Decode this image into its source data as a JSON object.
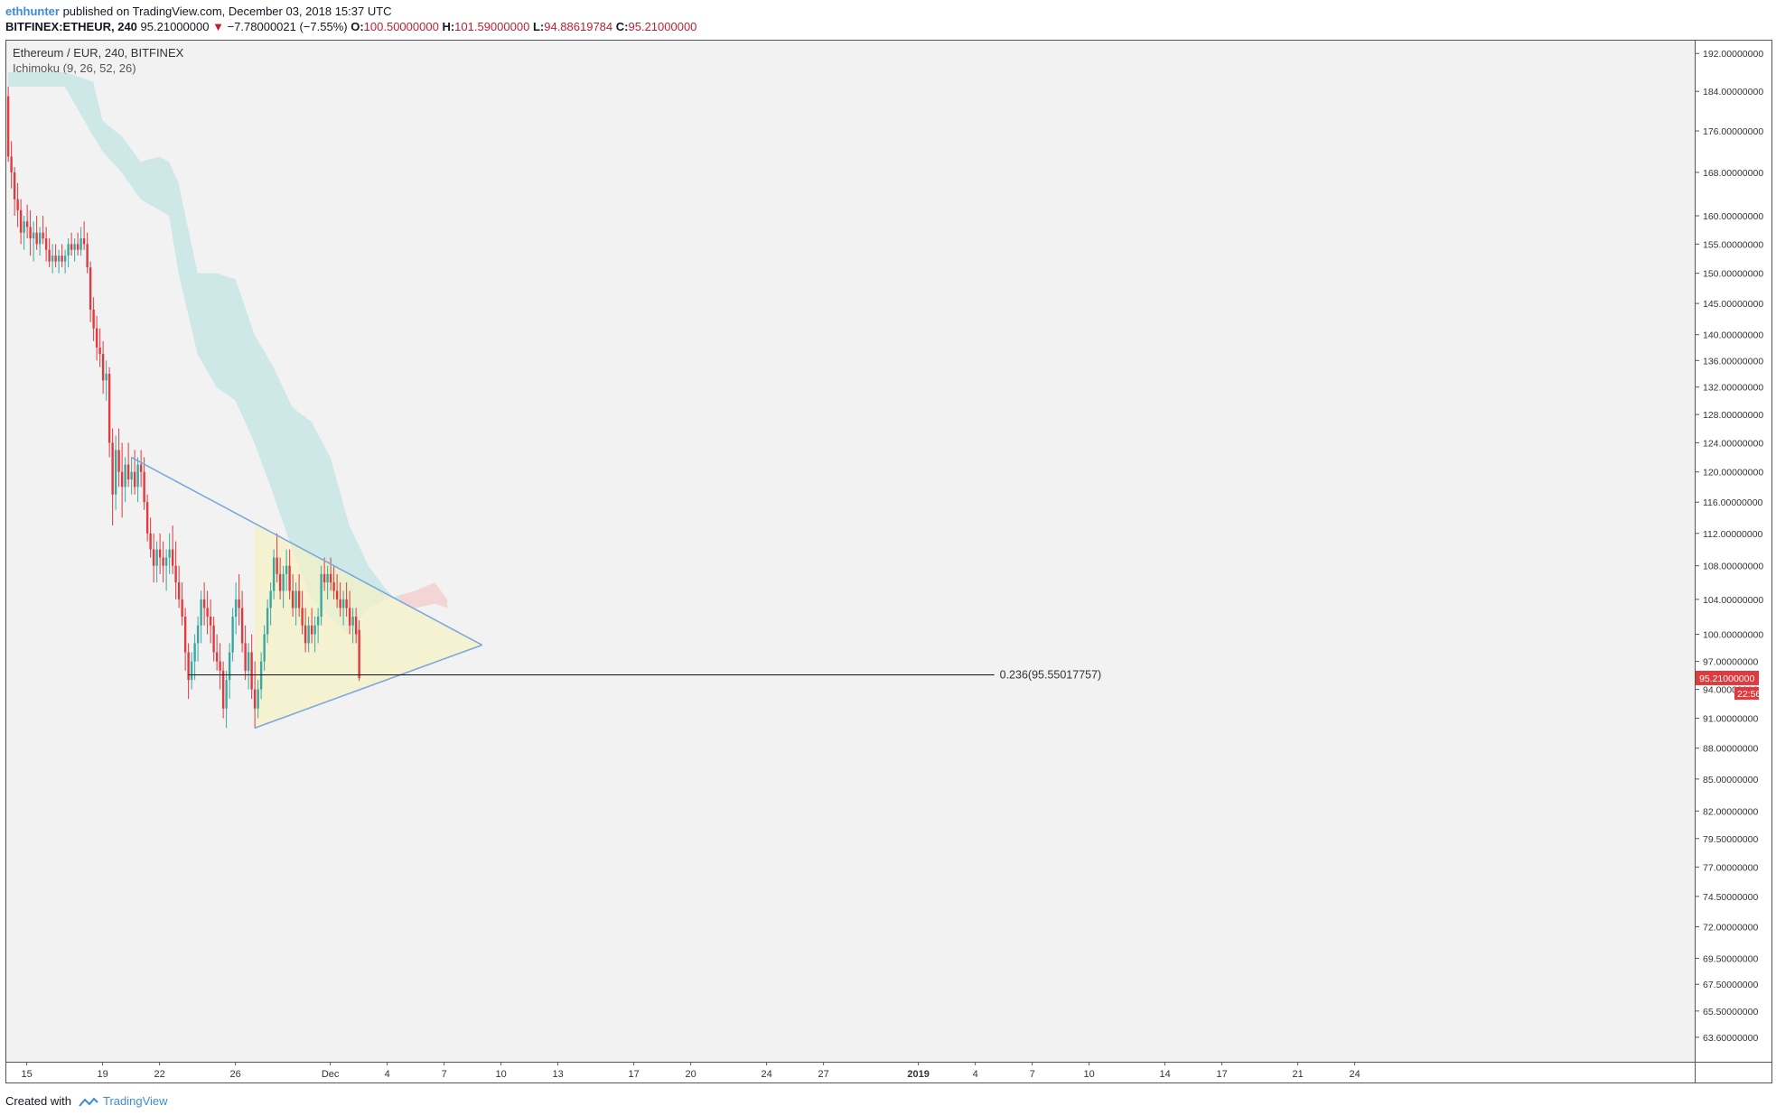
{
  "header": {
    "author": "ethhunter",
    "published_text": "published on TradingView.com, December 03, 2018 15:37 UTC",
    "symbol_line": "BITFINEX:ETHEUR, 240",
    "last_price": "95.21000000",
    "change_arrow": "▼",
    "change": "−7.78000021 (−7.55%)",
    "o_label": "O:",
    "o_value": "100.50000000",
    "h_label": "H:",
    "h_value": "101.59000000",
    "l_label": "L:",
    "l_value": "94.88619784",
    "c_label": "C:",
    "c_value": "95.21000000"
  },
  "legend": {
    "title": "Ethereum / EUR, 240, BITFINEX",
    "indicator": "Ichimoku (9, 26, 52, 26)"
  },
  "footer": {
    "created_with": "Created with",
    "brand": "TradingView"
  },
  "colors": {
    "up": "#3aa89f",
    "down": "#e0393e",
    "cloud_bear": "#f2c4c4",
    "cloud_bull": "#b9e2de",
    "triangle_fill": "#f7f2c4",
    "triangle_line": "#7aa7de",
    "background": "#f2f2f2",
    "price_badge": "#e0393e"
  },
  "chart_data": {
    "type": "candlestick",
    "symbol": "BITFINEX:ETHEUR",
    "interval": "240",
    "y_scale": "log",
    "ylim": [
      62,
      194
    ],
    "y_ticks": [
      "192.00000000",
      "184.00000000",
      "176.00000000",
      "168.00000000",
      "160.00000000",
      "155.00000000",
      "150.00000000",
      "145.00000000",
      "140.00000000",
      "136.00000000",
      "132.00000000",
      "128.00000000",
      "124.00000000",
      "120.00000000",
      "116.00000000",
      "112.00000000",
      "108.00000000",
      "104.00000000",
      "100.00000000",
      "97.00000000",
      "94.00000000",
      "91.00000000",
      "88.00000000",
      "85.00000000",
      "82.00000000",
      "79.50000000",
      "77.00000000",
      "74.50000000",
      "72.00000000",
      "69.50000000",
      "67.50000000",
      "65.50000000",
      "63.60000000"
    ],
    "y_tick_values": [
      192,
      184,
      176,
      168,
      160,
      155,
      150,
      145,
      140,
      136,
      132,
      128,
      124,
      120,
      116,
      112,
      108,
      104,
      100,
      97,
      94,
      91,
      88,
      85,
      82,
      79.5,
      77,
      74.5,
      72,
      69.5,
      67.5,
      65.5,
      63.6
    ],
    "x_range": [
      "2018-11-14",
      "2019-01-24"
    ],
    "x_ticks": [
      {
        "label": "15",
        "date": "2018-11-15"
      },
      {
        "label": "19",
        "date": "2018-11-19"
      },
      {
        "label": "22",
        "date": "2018-11-22"
      },
      {
        "label": "26",
        "date": "2018-11-26"
      },
      {
        "label": "Dec",
        "date": "2018-12-01"
      },
      {
        "label": "4",
        "date": "2018-12-04"
      },
      {
        "label": "7",
        "date": "2018-12-07"
      },
      {
        "label": "10",
        "date": "2018-12-10"
      },
      {
        "label": "13",
        "date": "2018-12-13"
      },
      {
        "label": "17",
        "date": "2018-12-17"
      },
      {
        "label": "20",
        "date": "2018-12-20"
      },
      {
        "label": "24",
        "date": "2018-12-24"
      },
      {
        "label": "27",
        "date": "2018-12-27"
      },
      {
        "label": "2019",
        "date": "2019-01-01"
      },
      {
        "label": "4",
        "date": "2019-01-04"
      },
      {
        "label": "7",
        "date": "2019-01-07"
      },
      {
        "label": "10",
        "date": "2019-01-10"
      },
      {
        "label": "14",
        "date": "2019-01-14"
      },
      {
        "label": "17",
        "date": "2019-01-17"
      },
      {
        "label": "21",
        "date": "2019-01-21"
      },
      {
        "label": "24",
        "date": "2019-01-24"
      }
    ],
    "candles": [
      [
        "2018-11-14 00:00",
        183,
        185,
        170,
        171
      ],
      [
        "2018-11-14 04:00",
        171,
        174,
        165,
        168
      ],
      [
        "2018-11-14 08:00",
        168,
        169,
        160,
        163
      ],
      [
        "2018-11-14 12:00",
        163,
        166,
        158,
        161
      ],
      [
        "2018-11-14 16:00",
        161,
        163,
        155,
        157
      ],
      [
        "2018-11-14 20:00",
        157,
        160,
        154,
        159
      ],
      [
        "2018-11-15 00:00",
        159,
        162,
        156,
        158
      ],
      [
        "2018-11-15 04:00",
        158,
        161,
        153,
        156
      ],
      [
        "2018-11-15 08:00",
        156,
        159,
        152,
        157
      ],
      [
        "2018-11-15 12:00",
        157,
        160,
        154,
        155
      ],
      [
        "2018-11-15 16:00",
        155,
        158,
        153,
        157
      ],
      [
        "2018-11-15 20:00",
        157,
        160,
        155,
        156
      ],
      [
        "2018-11-16 00:00",
        156,
        158,
        152,
        154
      ],
      [
        "2018-11-16 04:00",
        154,
        156,
        151,
        152
      ],
      [
        "2018-11-16 08:00",
        152,
        155,
        150,
        153
      ],
      [
        "2018-11-16 12:00",
        153,
        155,
        151,
        152
      ],
      [
        "2018-11-16 16:00",
        152,
        154,
        150,
        153
      ],
      [
        "2018-11-16 20:00",
        153,
        155,
        151,
        152
      ],
      [
        "2018-11-17 00:00",
        152,
        154,
        150,
        153
      ],
      [
        "2018-11-17 04:00",
        153,
        156,
        151,
        155
      ],
      [
        "2018-11-17 08:00",
        155,
        157,
        153,
        154
      ],
      [
        "2018-11-17 12:00",
        154,
        156,
        152,
        155
      ],
      [
        "2018-11-17 16:00",
        155,
        157,
        153,
        154
      ],
      [
        "2018-11-17 20:00",
        154,
        158,
        153,
        156
      ],
      [
        "2018-11-18 00:00",
        156,
        159,
        154,
        155
      ],
      [
        "2018-11-18 04:00",
        155,
        157,
        150,
        151
      ],
      [
        "2018-11-18 08:00",
        151,
        152,
        142,
        144
      ],
      [
        "2018-11-18 12:00",
        144,
        146,
        139,
        141
      ],
      [
        "2018-11-18 16:00",
        141,
        143,
        136,
        138
      ],
      [
        "2018-11-18 20:00",
        138,
        141,
        135,
        137
      ],
      [
        "2018-11-19 00:00",
        137,
        139,
        131,
        133
      ],
      [
        "2018-11-19 04:00",
        133,
        136,
        130,
        134
      ],
      [
        "2018-11-19 08:00",
        134,
        135,
        122,
        124
      ],
      [
        "2018-11-19 12:00",
        124,
        126,
        113,
        117
      ],
      [
        "2018-11-19 16:00",
        117,
        125,
        115,
        123
      ],
      [
        "2018-11-19 20:00",
        123,
        126,
        118,
        120
      ],
      [
        "2018-11-20 00:00",
        120,
        124,
        114,
        118
      ],
      [
        "2018-11-20 04:00",
        118,
        122,
        116,
        121
      ],
      [
        "2018-11-20 08:00",
        121,
        124,
        118,
        119
      ],
      [
        "2018-11-20 12:00",
        119,
        122,
        117,
        120
      ],
      [
        "2018-11-20 16:00",
        120,
        123,
        117,
        118
      ],
      [
        "2018-11-20 20:00",
        118,
        122,
        116,
        121
      ],
      [
        "2018-11-21 00:00",
        121,
        123,
        118,
        120
      ],
      [
        "2018-11-21 04:00",
        120,
        122,
        115,
        116
      ],
      [
        "2018-11-21 08:00",
        116,
        117,
        111,
        112
      ],
      [
        "2018-11-21 12:00",
        112,
        114,
        109,
        110
      ],
      [
        "2018-11-21 16:00",
        110,
        112,
        106,
        108
      ],
      [
        "2018-11-21 20:00",
        108,
        111,
        106,
        110
      ],
      [
        "2018-11-22 00:00",
        110,
        112,
        107,
        109
      ],
      [
        "2018-11-22 04:00",
        109,
        111,
        106,
        108
      ],
      [
        "2018-11-22 08:00",
        108,
        110,
        105,
        109
      ],
      [
        "2018-11-22 12:00",
        109,
        112,
        107,
        110
      ],
      [
        "2018-11-22 16:00",
        110,
        113,
        107,
        108
      ],
      [
        "2018-11-22 20:00",
        108,
        111,
        104,
        106
      ],
      [
        "2018-11-23 00:00",
        106,
        108,
        103,
        104
      ],
      [
        "2018-11-23 04:00",
        104,
        106,
        101,
        102
      ],
      [
        "2018-11-23 08:00",
        102,
        103,
        96,
        98
      ],
      [
        "2018-11-23 12:00",
        98,
        99,
        93,
        95
      ],
      [
        "2018-11-23 16:00",
        95,
        98,
        94,
        97
      ],
      [
        "2018-11-23 20:00",
        97,
        100,
        95,
        99
      ],
      [
        "2018-11-24 00:00",
        99,
        102,
        97,
        101
      ],
      [
        "2018-11-24 04:00",
        101,
        105,
        99,
        104
      ],
      [
        "2018-11-24 08:00",
        104,
        106,
        101,
        103
      ],
      [
        "2018-11-24 12:00",
        103,
        105,
        100,
        102
      ],
      [
        "2018-11-24 16:00",
        102,
        104,
        99,
        101
      ],
      [
        "2018-11-24 20:00",
        101,
        102,
        97,
        98
      ],
      [
        "2018-11-25 00:00",
        98,
        100,
        96,
        97
      ],
      [
        "2018-11-25 04:00",
        97,
        99,
        94,
        96
      ],
      [
        "2018-11-25 08:00",
        96,
        97,
        91,
        92
      ],
      [
        "2018-11-25 12:00",
        92,
        96,
        90,
        95
      ],
      [
        "2018-11-25 16:00",
        95,
        99,
        93,
        98
      ],
      [
        "2018-11-25 20:00",
        98,
        103,
        97,
        102
      ],
      [
        "2018-11-26 00:00",
        102,
        106,
        100,
        104
      ],
      [
        "2018-11-26 04:00",
        104,
        107,
        101,
        103
      ],
      [
        "2018-11-26 08:00",
        103,
        105,
        98,
        99
      ],
      [
        "2018-11-26 12:00",
        99,
        101,
        95,
        96
      ],
      [
        "2018-11-26 16:00",
        96,
        99,
        94,
        98
      ],
      [
        "2018-11-26 20:00",
        98,
        100,
        93,
        94
      ],
      [
        "2018-11-27 00:00",
        94,
        97,
        90,
        92
      ],
      [
        "2018-11-27 04:00",
        92,
        95,
        91,
        94
      ],
      [
        "2018-11-27 08:00",
        94,
        98,
        93,
        97
      ],
      [
        "2018-11-27 12:00",
        97,
        101,
        96,
        100
      ],
      [
        "2018-11-27 16:00",
        100,
        104,
        99,
        103
      ],
      [
        "2018-11-27 20:00",
        103,
        106,
        101,
        105
      ],
      [
        "2018-11-28 00:00",
        105,
        110,
        104,
        109
      ],
      [
        "2018-11-28 04:00",
        109,
        112,
        106,
        107
      ],
      [
        "2018-11-28 08:00",
        107,
        109,
        104,
        105
      ],
      [
        "2018-11-28 12:00",
        105,
        108,
        103,
        107
      ],
      [
        "2018-11-28 16:00",
        107,
        110,
        105,
        108
      ],
      [
        "2018-11-28 20:00",
        108,
        110,
        104,
        105
      ],
      [
        "2018-11-29 00:00",
        105,
        107,
        102,
        103
      ],
      [
        "2018-11-29 04:00",
        103,
        106,
        101,
        105
      ],
      [
        "2018-11-29 08:00",
        105,
        107,
        102,
        103
      ],
      [
        "2018-11-29 12:00",
        103,
        105,
        100,
        101
      ],
      [
        "2018-11-29 16:00",
        101,
        103,
        98,
        99
      ],
      [
        "2018-11-29 20:00",
        99,
        102,
        98,
        101
      ],
      [
        "2018-11-30 00:00",
        101,
        103,
        99,
        100
      ],
      [
        "2018-11-30 04:00",
        100,
        102,
        98,
        101
      ],
      [
        "2018-11-30 08:00",
        101,
        103,
        99,
        102
      ],
      [
        "2018-11-30 12:00",
        102,
        108,
        101,
        107
      ],
      [
        "2018-11-30 16:00",
        107,
        109,
        105,
        106
      ],
      [
        "2018-11-30 20:00",
        106,
        108,
        104,
        107
      ],
      [
        "2018-12-01 00:00",
        107,
        109,
        105,
        106
      ],
      [
        "2018-12-01 04:00",
        106,
        108,
        104,
        105
      ],
      [
        "2018-12-01 08:00",
        105,
        107,
        103,
        104
      ],
      [
        "2018-12-01 12:00",
        104,
        106,
        102,
        103
      ],
      [
        "2018-12-01 16:00",
        103,
        105,
        101,
        104
      ],
      [
        "2018-12-01 20:00",
        104,
        106,
        102,
        103
      ],
      [
        "2018-12-02 00:00",
        103,
        105,
        100,
        101
      ],
      [
        "2018-12-02 04:00",
        101,
        103,
        99,
        102
      ],
      [
        "2018-12-02 08:00",
        102,
        103,
        99,
        100
      ],
      [
        "2018-12-02 12:00",
        100.5,
        101.59,
        94.88619784,
        95.21
      ]
    ],
    "ichimoku_cloud": [
      {
        "date": "2018-11-14 00:00",
        "a": 188,
        "b": 185
      },
      {
        "date": "2018-11-17 00:00",
        "a": 188,
        "b": 185
      },
      {
        "date": "2018-11-18 12:00",
        "a": 186,
        "b": 175
      },
      {
        "date": "2018-11-19 00:00",
        "a": 178,
        "b": 172
      },
      {
        "date": "2018-11-20 00:00",
        "a": 175,
        "b": 168
      },
      {
        "date": "2018-11-21 00:00",
        "a": 170,
        "b": 163
      },
      {
        "date": "2018-11-22 00:00",
        "a": 171,
        "b": 161
      },
      {
        "date": "2018-11-22 12:00",
        "a": 170,
        "b": 160
      },
      {
        "date": "2018-11-23 00:00",
        "a": 166,
        "b": 150
      },
      {
        "date": "2018-11-24 00:00",
        "a": 150,
        "b": 137
      },
      {
        "date": "2018-11-25 00:00",
        "a": 150,
        "b": 132
      },
      {
        "date": "2018-11-26 00:00",
        "a": 149,
        "b": 130
      },
      {
        "date": "2018-11-27 00:00",
        "a": 140,
        "b": 124
      },
      {
        "date": "2018-11-28 00:00",
        "a": 135,
        "b": 117
      },
      {
        "date": "2018-11-29 00:00",
        "a": 129,
        "b": 110
      },
      {
        "date": "2018-11-30 00:00",
        "a": 127,
        "b": 104
      },
      {
        "date": "2018-12-01 00:00",
        "a": 122,
        "b": 102
      },
      {
        "date": "2018-12-02 00:00",
        "a": 113,
        "b": 100
      },
      {
        "date": "2018-12-03 00:00",
        "a": 108,
        "b": 103
      },
      {
        "date": "2018-12-04 00:00",
        "a": 105,
        "b": 104
      },
      {
        "date": "2018-12-04 16:00",
        "a": 103.5,
        "b": 104.5
      },
      {
        "date": "2018-12-05 12:00",
        "a": 103,
        "b": 105
      },
      {
        "date": "2018-12-06 12:00",
        "a": 103.5,
        "b": 106
      },
      {
        "date": "2018-12-07 04:00",
        "a": 103,
        "b": 104
      }
    ],
    "triangle": {
      "fill_from": "2018-11-27 00:00",
      "upper": [
        {
          "date": "2018-11-20 12:00",
          "price": 122
        },
        {
          "date": "2018-12-09 00:00",
          "price": 98.8
        }
      ],
      "lower": [
        {
          "date": "2018-11-27 00:00",
          "price": 90
        },
        {
          "date": "2018-12-09 00:00",
          "price": 98.8
        }
      ]
    },
    "fib_level": {
      "label": "0.236(95.55017757)",
      "price": 95.55017757,
      "from": "2018-11-23 12:00",
      "to": "2019-01-05 00:00"
    },
    "last_price_label": "95.21000000",
    "countdown_label": "22:56"
  }
}
